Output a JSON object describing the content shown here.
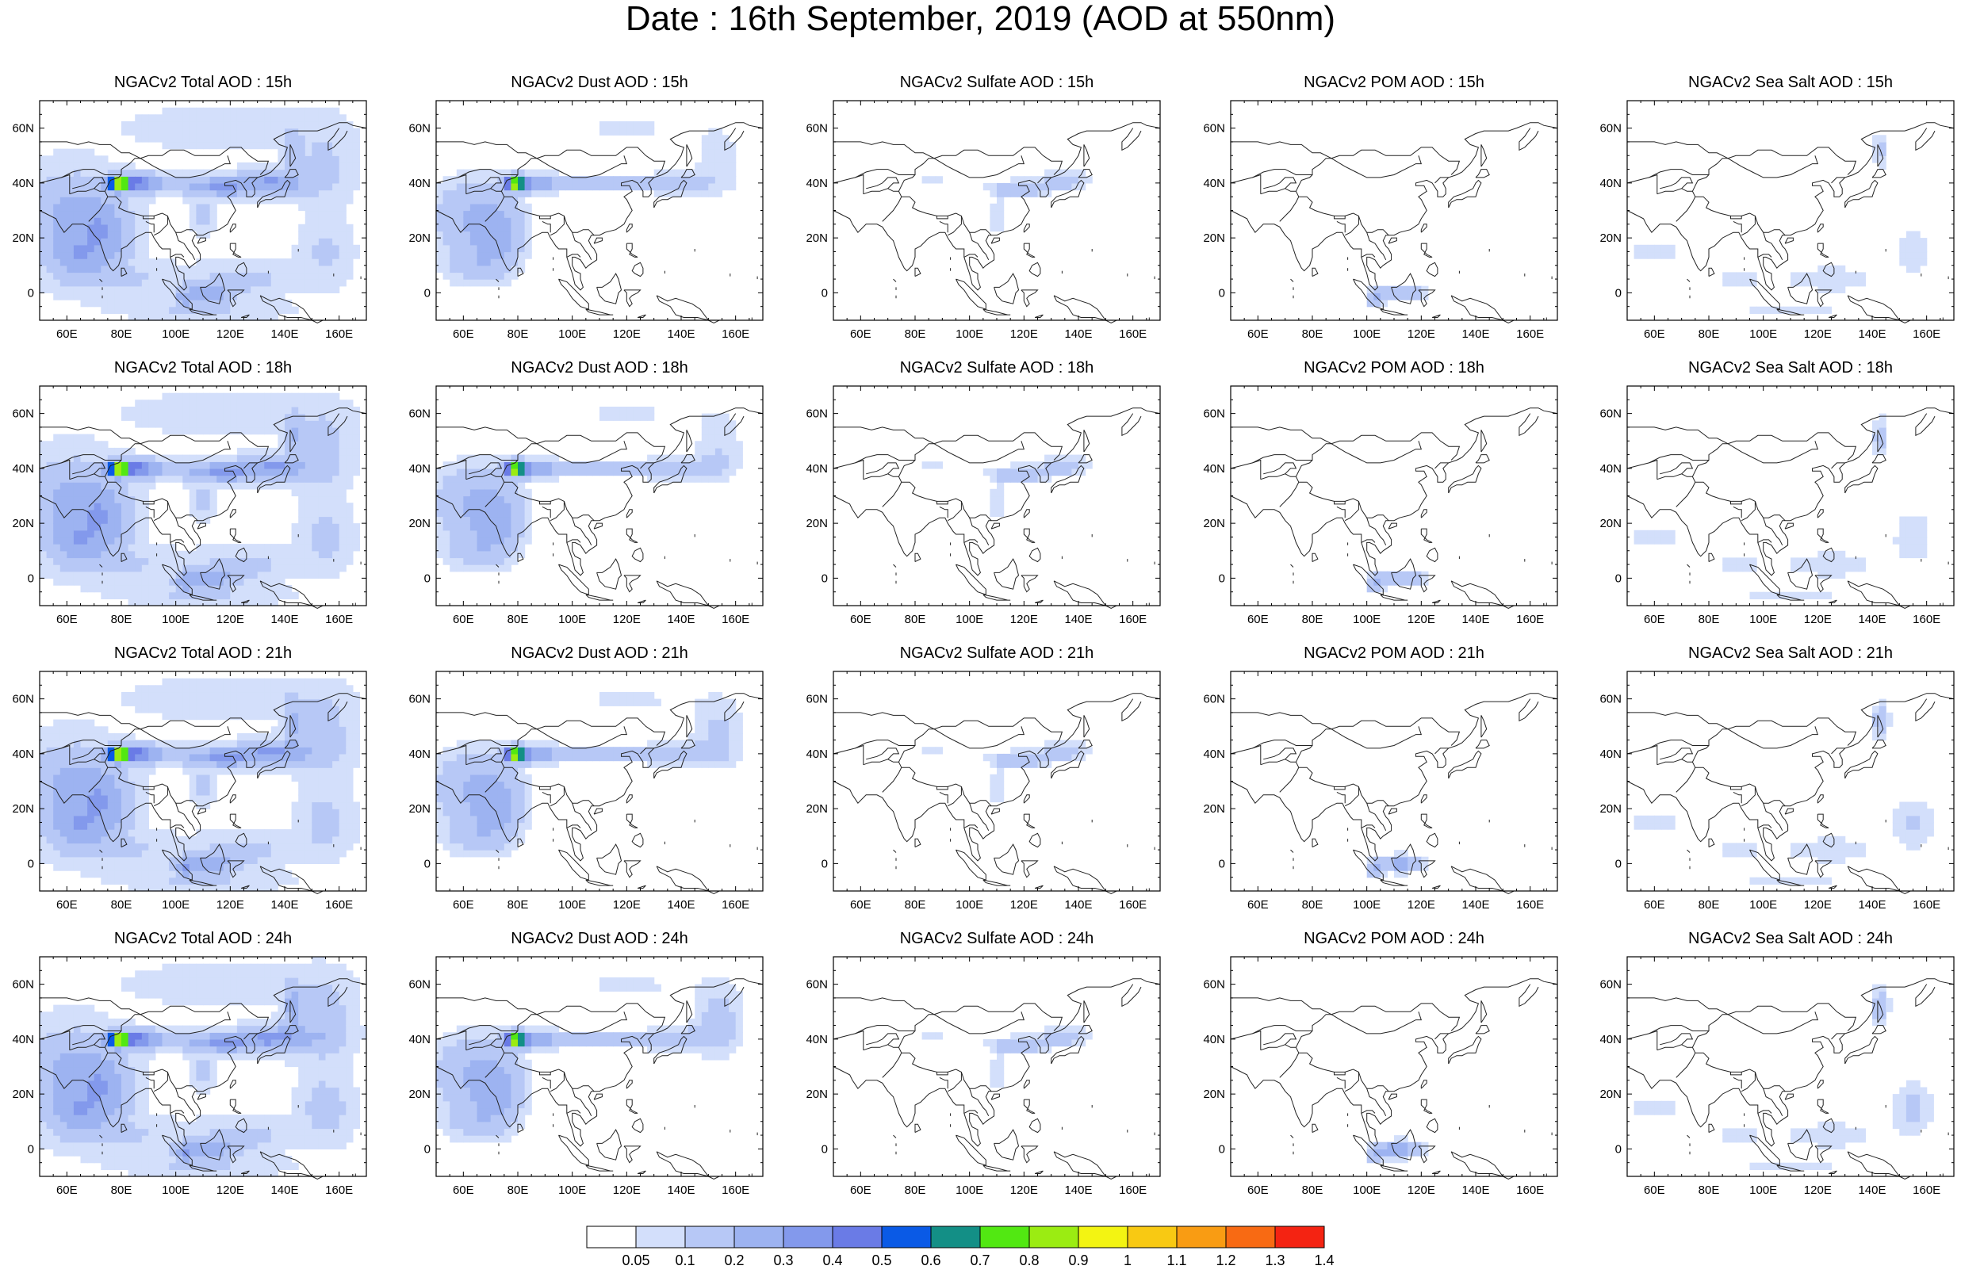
{
  "title": "Date : 16th September, 2019 (AOD at 550nm)",
  "chart_data": {
    "type": "heatmap",
    "grid": {
      "rows": 4,
      "cols": 5
    },
    "variable": "AOD at 550nm",
    "xlim": [
      50,
      170
    ],
    "ylim": [
      -10,
      70
    ],
    "x_ticks": [
      {
        "value": 60,
        "label": "60E"
      },
      {
        "value": 80,
        "label": "80E"
      },
      {
        "value": 100,
        "label": "100E"
      },
      {
        "value": 120,
        "label": "120E"
      },
      {
        "value": 140,
        "label": "140E"
      },
      {
        "value": 160,
        "label": "160E"
      }
    ],
    "y_ticks": [
      {
        "value": 0,
        "label": "0"
      },
      {
        "value": 20,
        "label": "20N"
      },
      {
        "value": 40,
        "label": "40N"
      },
      {
        "value": 60,
        "label": "60N"
      }
    ],
    "panels": [
      {
        "title": "NGACv2 Total AOD : 15h",
        "species": "total",
        "hour": 15
      },
      {
        "title": "NGACv2 Dust AOD : 15h",
        "species": "dust",
        "hour": 15
      },
      {
        "title": "NGACv2 Sulfate AOD : 15h",
        "species": "sulfate",
        "hour": 15
      },
      {
        "title": "NGACv2 POM AOD : 15h",
        "species": "pom",
        "hour": 15
      },
      {
        "title": "NGACv2 Sea Salt AOD : 15h",
        "species": "seasalt",
        "hour": 15
      },
      {
        "title": "NGACv2 Total AOD : 18h",
        "species": "total",
        "hour": 18
      },
      {
        "title": "NGACv2 Dust AOD : 18h",
        "species": "dust",
        "hour": 18
      },
      {
        "title": "NGACv2 Sulfate AOD : 18h",
        "species": "sulfate",
        "hour": 18
      },
      {
        "title": "NGACv2 POM AOD : 18h",
        "species": "pom",
        "hour": 18
      },
      {
        "title": "NGACv2 Sea Salt AOD : 18h",
        "species": "seasalt",
        "hour": 18
      },
      {
        "title": "NGACv2 Total AOD : 21h",
        "species": "total",
        "hour": 21
      },
      {
        "title": "NGACv2 Dust AOD : 21h",
        "species": "dust",
        "hour": 21
      },
      {
        "title": "NGACv2 Sulfate AOD : 21h",
        "species": "sulfate",
        "hour": 21
      },
      {
        "title": "NGACv2 POM AOD : 21h",
        "species": "pom",
        "hour": 21
      },
      {
        "title": "NGACv2 Sea Salt AOD : 21h",
        "species": "seasalt",
        "hour": 21
      },
      {
        "title": "NGACv2 Total AOD : 24h",
        "species": "total",
        "hour": 24
      },
      {
        "title": "NGACv2 Dust AOD : 24h",
        "species": "dust",
        "hour": 24
      },
      {
        "title": "NGACv2 Sulfate AOD : 24h",
        "species": "sulfate",
        "hour": 24
      },
      {
        "title": "NGACv2 POM AOD : 24h",
        "species": "pom",
        "hour": 24
      },
      {
        "title": "NGACv2 Sea Salt  AOD : 24h",
        "species": "seasalt",
        "hour": 24
      }
    ],
    "colorbar": {
      "levels": [
        "0.05",
        "0.1",
        "0.2",
        "0.3",
        "0.4",
        "0.5",
        "0.6",
        "0.7",
        "0.8",
        "0.9",
        "1",
        "1.1",
        "1.2",
        "1.3",
        "1.4"
      ],
      "colors": [
        "#ffffff",
        "#d3dffb",
        "#b7c8f6",
        "#9db3f1",
        "#8399ec",
        "#6a7be6",
        "#0a5ae6",
        "#138f86",
        "#52e812",
        "#9bec12",
        "#f3f412",
        "#f8c913",
        "#f99c13",
        "#f86a13",
        "#f42312"
      ]
    }
  }
}
